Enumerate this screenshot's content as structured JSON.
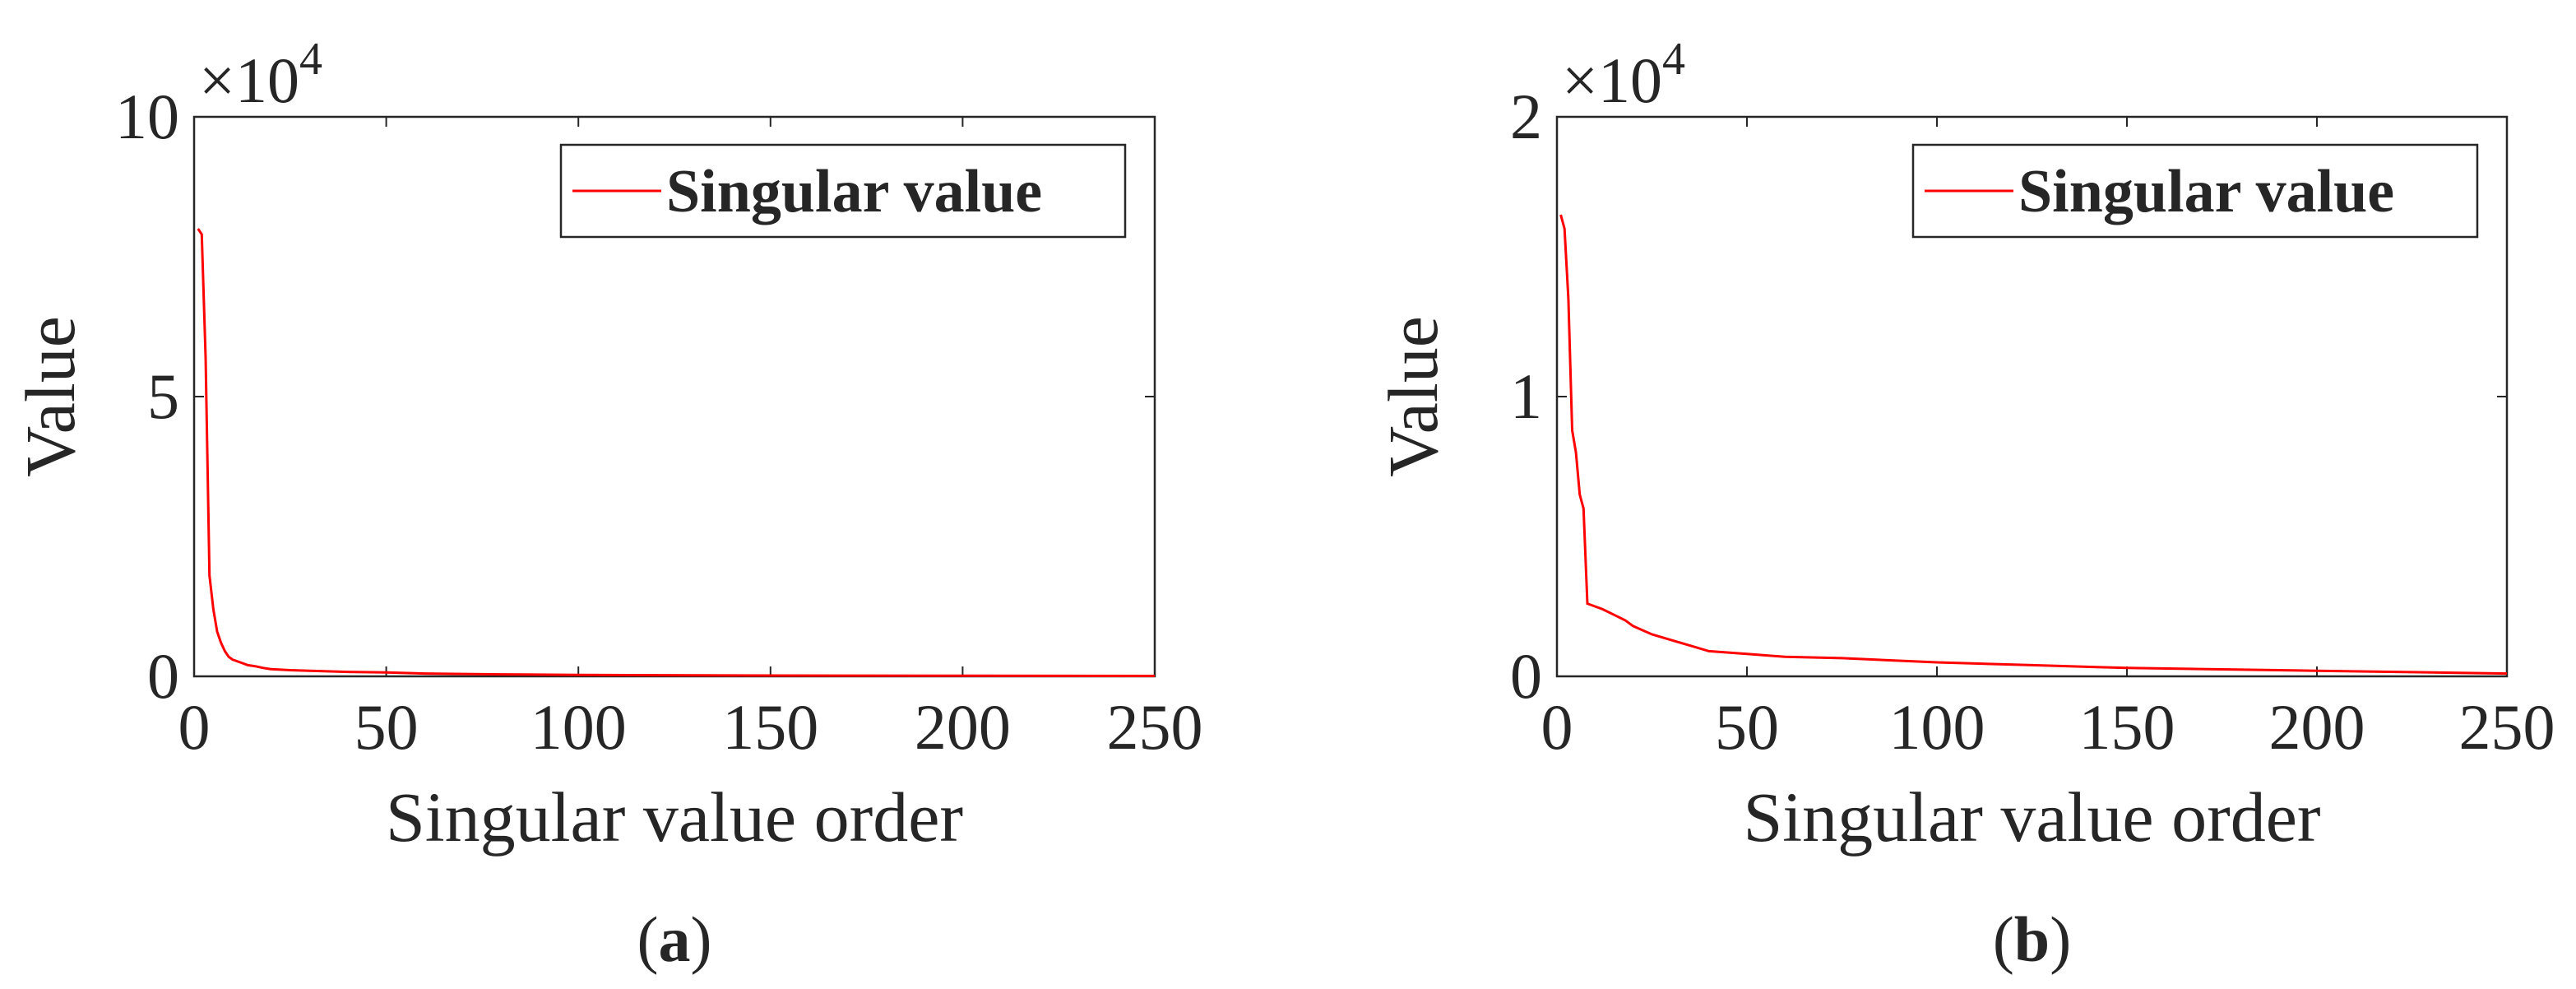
{
  "chart_data": [
    {
      "type": "line",
      "panel_label": "a",
      "title": "",
      "xlabel": "Singular value order",
      "ylabel": "Value",
      "exponent_label": "×10",
      "exponent_power": "4",
      "xlim": [
        0,
        250
      ],
      "ylim": [
        0,
        100000
      ],
      "xticks": [
        0,
        50,
        100,
        150,
        200,
        250
      ],
      "yticks": [
        0,
        50000,
        100000
      ],
      "ytick_labels": [
        "0",
        "5",
        "10"
      ],
      "grid": false,
      "legend": {
        "entries": [
          "Singular value"
        ],
        "placement": "top-right"
      },
      "series": [
        {
          "name": "Singular value",
          "color": "#ff0000",
          "x": [
            1,
            2,
            3,
            4,
            5,
            6,
            7,
            8,
            9,
            10,
            12,
            14,
            16,
            18,
            20,
            25,
            30,
            40,
            50,
            60,
            80,
            100,
            150,
            200,
            250
          ],
          "y": [
            80000,
            79000,
            57000,
            18000,
            12000,
            8000,
            6000,
            4500,
            3500,
            3000,
            2500,
            2000,
            1800,
            1500,
            1300,
            1100,
            1000,
            800,
            700,
            500,
            350,
            250,
            150,
            100,
            80
          ]
        }
      ]
    },
    {
      "type": "line",
      "panel_label": "b",
      "title": "",
      "xlabel": "Singular value order",
      "ylabel": "Value",
      "exponent_label": "×10",
      "exponent_power": "4",
      "xlim": [
        0,
        250
      ],
      "ylim": [
        0,
        20000
      ],
      "xticks": [
        0,
        50,
        100,
        150,
        200,
        250
      ],
      "yticks": [
        0,
        10000,
        20000
      ],
      "ytick_labels": [
        "0",
        "1",
        "2"
      ],
      "grid": false,
      "legend": {
        "entries": [
          "Singular value"
        ],
        "placement": "top-right"
      },
      "series": [
        {
          "name": "Singular value",
          "color": "#ff0000",
          "x": [
            1,
            2,
            3,
            4,
            5,
            6,
            7,
            8,
            10,
            12,
            15,
            18,
            20,
            25,
            30,
            35,
            40,
            50,
            60,
            75,
            100,
            125,
            150,
            175,
            200,
            225,
            250
          ],
          "y": [
            16500,
            16000,
            13500,
            8800,
            8000,
            6500,
            6000,
            2600,
            2500,
            2400,
            2200,
            2000,
            1800,
            1500,
            1300,
            1100,
            900,
            800,
            700,
            650,
            500,
            400,
            300,
            250,
            200,
            150,
            100
          ]
        }
      ]
    }
  ]
}
